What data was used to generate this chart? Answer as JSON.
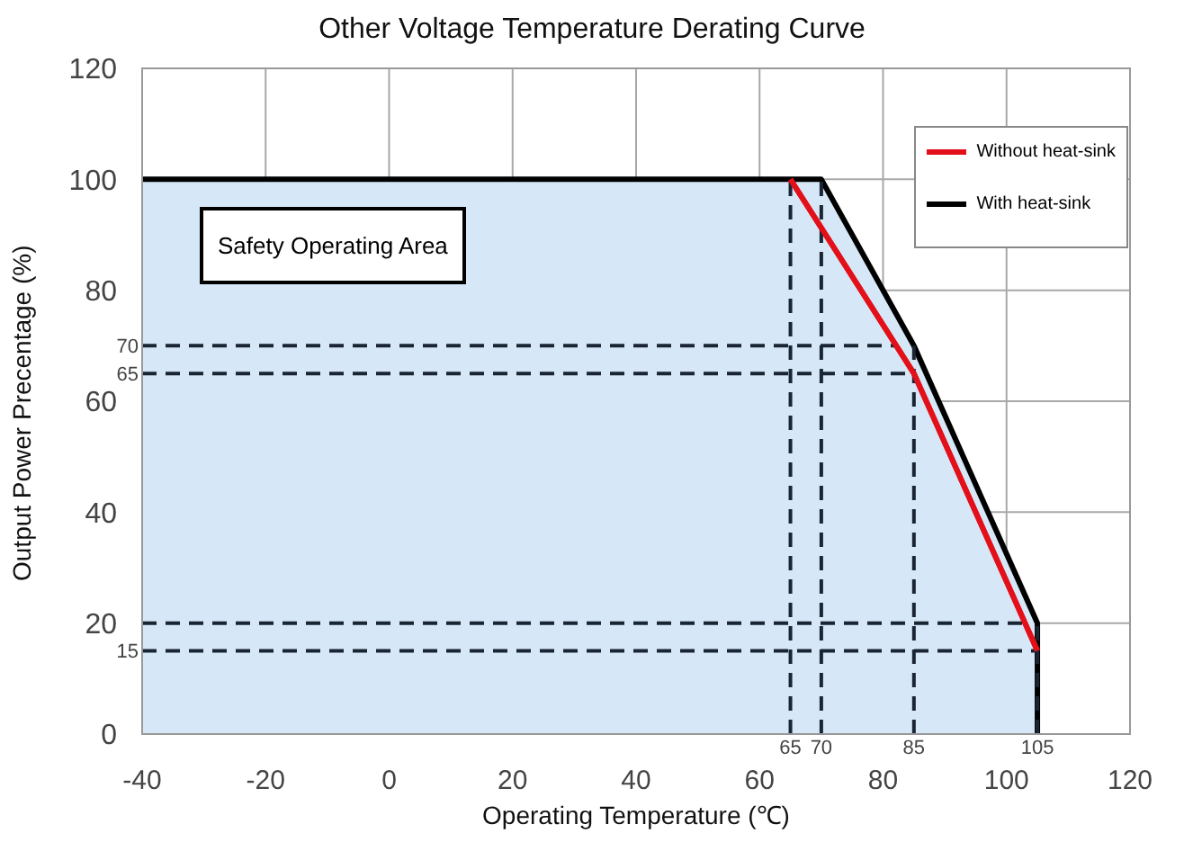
{
  "chart_data": {
    "type": "line",
    "title": "Other Voltage Temperature Derating Curve",
    "xlabel": "Operating Temperature (℃)",
    "ylabel": "Output Power Precentage (%)",
    "series": [
      {
        "name": "Without heat-sink",
        "color": "#e3101a",
        "x": [
          65,
          85,
          105
        ],
        "values": [
          100,
          65,
          15
        ]
      },
      {
        "name": "With heat-sink",
        "type": "area",
        "color": "#000000",
        "x": [
          -40,
          70,
          85,
          105,
          105
        ],
        "values": [
          100,
          100,
          70,
          20,
          0
        ]
      }
    ],
    "xlim": [
      -40,
      120
    ],
    "xticks": [
      -40,
      -20,
      0,
      20,
      40,
      60,
      80,
      100,
      120
    ],
    "ylim": [
      0,
      120
    ],
    "yticks": [
      0,
      20,
      40,
      60,
      80,
      100,
      120
    ],
    "ref_lines": [
      {
        "axis": "x",
        "value": 65,
        "label": "65",
        "line_style": "dashed",
        "color": "#1a2533"
      },
      {
        "axis": "x",
        "value": 70,
        "label": "70",
        "line_style": "dashed",
        "color": "#1a2533"
      },
      {
        "axis": "x",
        "value": 85,
        "label": "85",
        "line_style": "dashed",
        "color": "#1a2533"
      },
      {
        "axis": "x",
        "value": 105,
        "label": "105",
        "line_style": "dashed",
        "color": "#1a2533"
      },
      {
        "axis": "y",
        "value": 70,
        "label": "70",
        "line_style": "dashed",
        "color": "#1a2533"
      },
      {
        "axis": "y",
        "value": 65,
        "label": "65",
        "line_style": "dashed",
        "color": "#1a2533"
      },
      {
        "axis": "y",
        "value": 20,
        "label": null,
        "line_style": "dashed",
        "color": "#1a2533"
      },
      {
        "axis": "y",
        "value": 15,
        "label": "15",
        "line_style": "dashed",
        "color": "#1a2533"
      }
    ],
    "annotations": [
      "Safety Operating Area"
    ],
    "grid": true,
    "legend": "top right",
    "marker": "none"
  }
}
